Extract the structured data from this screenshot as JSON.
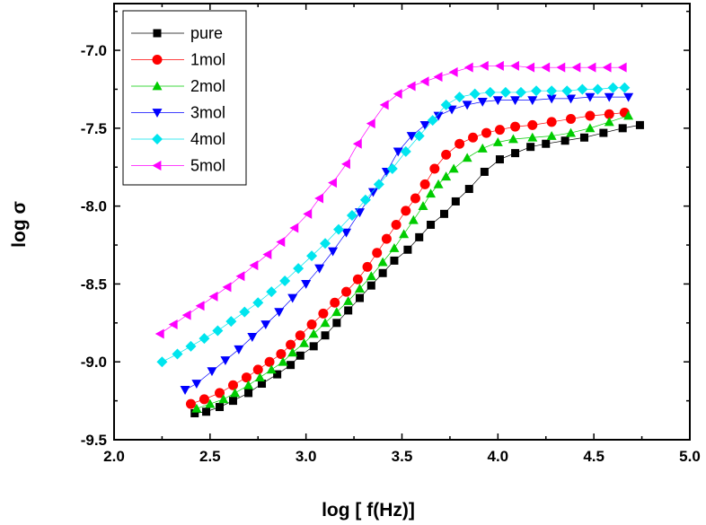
{
  "chart_data": {
    "type": "scatter",
    "xlabel": "log [ f(Hz)]",
    "ylabel": "log σ",
    "xlim": [
      2.0,
      5.0
    ],
    "ylim": [
      -9.5,
      -6.7
    ],
    "xticks": [
      "2.0",
      "2.5",
      "3.0",
      "3.5",
      "4.0",
      "4.5",
      "5.0"
    ],
    "yticks": [
      "-7.0",
      "-7.5",
      "-8.0",
      "-8.5",
      "-9.0",
      "-9.5"
    ],
    "legend_position": "top-left",
    "series": [
      {
        "name": "pure",
        "marker": "square",
        "color": "#000000",
        "x": [
          2.42,
          2.48,
          2.55,
          2.62,
          2.7,
          2.77,
          2.85,
          2.92,
          2.97,
          3.04,
          3.1,
          3.16,
          3.22,
          3.28,
          3.34,
          3.4,
          3.46,
          3.53,
          3.59,
          3.65,
          3.72,
          3.78,
          3.85,
          3.93,
          4.01,
          4.09,
          4.17,
          4.25,
          4.35,
          4.45,
          4.55,
          4.65,
          4.74
        ],
        "y": [
          -9.33,
          -9.32,
          -9.29,
          -9.25,
          -9.2,
          -9.14,
          -9.08,
          -9.02,
          -8.96,
          -8.9,
          -8.83,
          -8.75,
          -8.67,
          -8.59,
          -8.51,
          -8.43,
          -8.35,
          -8.28,
          -8.2,
          -8.12,
          -8.05,
          -7.97,
          -7.89,
          -7.78,
          -7.7,
          -7.66,
          -7.62,
          -7.6,
          -7.58,
          -7.56,
          -7.53,
          -7.5,
          -7.48
        ]
      },
      {
        "name": "1mol",
        "marker": "circle",
        "color": "#ff0000",
        "x": [
          2.4,
          2.47,
          2.55,
          2.62,
          2.69,
          2.75,
          2.81,
          2.87,
          2.92,
          2.97,
          3.03,
          3.09,
          3.15,
          3.21,
          3.27,
          3.32,
          3.37,
          3.42,
          3.47,
          3.52,
          3.57,
          3.62,
          3.67,
          3.73,
          3.8,
          3.87,
          3.94,
          4.01,
          4.09,
          4.18,
          4.28,
          4.38,
          4.48,
          4.58,
          4.66
        ],
        "y": [
          -9.27,
          -9.24,
          -9.2,
          -9.15,
          -9.1,
          -9.05,
          -9.0,
          -8.95,
          -8.89,
          -8.83,
          -8.76,
          -8.69,
          -8.62,
          -8.55,
          -8.47,
          -8.39,
          -8.3,
          -8.21,
          -8.12,
          -8.03,
          -7.95,
          -7.86,
          -7.76,
          -7.67,
          -7.6,
          -7.56,
          -7.53,
          -7.51,
          -7.49,
          -7.48,
          -7.46,
          -7.44,
          -7.42,
          -7.41,
          -7.4
        ]
      },
      {
        "name": "2mol",
        "marker": "triangle-up",
        "color": "#00cc00",
        "x": [
          2.43,
          2.5,
          2.57,
          2.63,
          2.7,
          2.76,
          2.82,
          2.88,
          2.93,
          2.99,
          3.04,
          3.1,
          3.16,
          3.22,
          3.28,
          3.34,
          3.4,
          3.46,
          3.51,
          3.56,
          3.61,
          3.65,
          3.69,
          3.73,
          3.77,
          3.84,
          3.92,
          4.0,
          4.08,
          4.18,
          4.28,
          4.38,
          4.48,
          4.58,
          4.68
        ],
        "y": [
          -9.3,
          -9.27,
          -9.24,
          -9.2,
          -9.15,
          -9.1,
          -9.05,
          -9.0,
          -8.94,
          -8.88,
          -8.82,
          -8.75,
          -8.68,
          -8.61,
          -8.53,
          -8.45,
          -8.36,
          -8.27,
          -8.18,
          -8.09,
          -8.0,
          -7.92,
          -7.86,
          -7.81,
          -7.76,
          -7.69,
          -7.63,
          -7.59,
          -7.57,
          -7.56,
          -7.55,
          -7.53,
          -7.5,
          -7.46,
          -7.42
        ]
      },
      {
        "name": "3mol",
        "marker": "triangle-down",
        "color": "#0000ff",
        "x": [
          2.37,
          2.43,
          2.51,
          2.58,
          2.65,
          2.72,
          2.79,
          2.86,
          2.93,
          3.0,
          3.07,
          3.14,
          3.21,
          3.28,
          3.35,
          3.42,
          3.48,
          3.55,
          3.62,
          3.69,
          3.76,
          3.84,
          3.92,
          4.0,
          4.09,
          4.18,
          4.28,
          4.38,
          4.48,
          4.58,
          4.68
        ],
        "y": [
          -9.18,
          -9.14,
          -9.06,
          -8.99,
          -8.92,
          -8.84,
          -8.76,
          -8.68,
          -8.59,
          -8.5,
          -8.4,
          -8.29,
          -8.17,
          -8.04,
          -7.91,
          -7.78,
          -7.65,
          -7.55,
          -7.48,
          -7.42,
          -7.38,
          -7.35,
          -7.33,
          -7.32,
          -7.32,
          -7.32,
          -7.31,
          -7.31,
          -7.3,
          -7.3,
          -7.3
        ]
      },
      {
        "name": "4mol",
        "marker": "diamond",
        "color": "#00e5ee",
        "x": [
          2.25,
          2.33,
          2.4,
          2.47,
          2.54,
          2.61,
          2.68,
          2.75,
          2.82,
          2.89,
          2.96,
          3.03,
          3.1,
          3.17,
          3.24,
          3.31,
          3.38,
          3.45,
          3.52,
          3.59,
          3.66,
          3.73,
          3.8,
          3.88,
          3.96,
          4.04,
          4.12,
          4.2,
          4.28,
          4.36,
          4.44,
          4.52,
          4.6,
          4.66
        ],
        "y": [
          -9.0,
          -8.95,
          -8.9,
          -8.85,
          -8.8,
          -8.74,
          -8.68,
          -8.62,
          -8.55,
          -8.48,
          -8.4,
          -8.32,
          -8.24,
          -8.15,
          -8.06,
          -7.96,
          -7.86,
          -7.76,
          -7.65,
          -7.55,
          -7.45,
          -7.35,
          -7.3,
          -7.28,
          -7.27,
          -7.27,
          -7.27,
          -7.26,
          -7.26,
          -7.26,
          -7.25,
          -7.25,
          -7.24,
          -7.24
        ]
      },
      {
        "name": "5mol",
        "marker": "triangle-left",
        "color": "#ff00ff",
        "x": [
          2.24,
          2.31,
          2.38,
          2.45,
          2.52,
          2.59,
          2.66,
          2.73,
          2.8,
          2.87,
          2.94,
          3.01,
          3.07,
          3.14,
          3.21,
          3.27,
          3.34,
          3.41,
          3.48,
          3.55,
          3.62,
          3.69,
          3.77,
          3.85,
          3.93,
          4.01,
          4.09,
          4.17,
          4.25,
          4.33,
          4.41,
          4.49,
          4.57,
          4.65
        ],
        "y": [
          -8.82,
          -8.76,
          -8.7,
          -8.64,
          -8.58,
          -8.52,
          -8.45,
          -8.38,
          -8.31,
          -8.23,
          -8.14,
          -8.05,
          -7.95,
          -7.85,
          -7.73,
          -7.6,
          -7.47,
          -7.35,
          -7.28,
          -7.23,
          -7.2,
          -7.17,
          -7.14,
          -7.11,
          -7.1,
          -7.1,
          -7.1,
          -7.11,
          -7.11,
          -7.11,
          -7.11,
          -7.11,
          -7.11,
          -7.11
        ]
      }
    ]
  }
}
